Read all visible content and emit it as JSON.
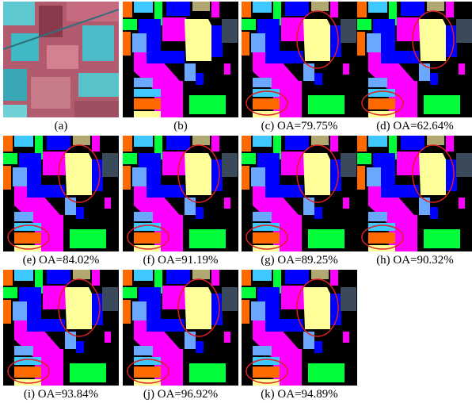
{
  "panels": [
    {
      "caption": "(a)"
    },
    {
      "caption": "(b)"
    },
    {
      "caption": "(c) OA=79.75%"
    },
    {
      "caption": "(d) OA=62.64%"
    },
    {
      "caption": "(e) OA=84.02%"
    },
    {
      "caption": "(f) OA=91.19%"
    },
    {
      "caption": "(g) OA=89.25%"
    },
    {
      "caption": "(h) OA=90.32%"
    },
    {
      "caption": "(i) OA=93.84%"
    },
    {
      "caption": "(j) OA=96.92%"
    },
    {
      "caption": "(k) OA=94.89%"
    }
  ]
}
